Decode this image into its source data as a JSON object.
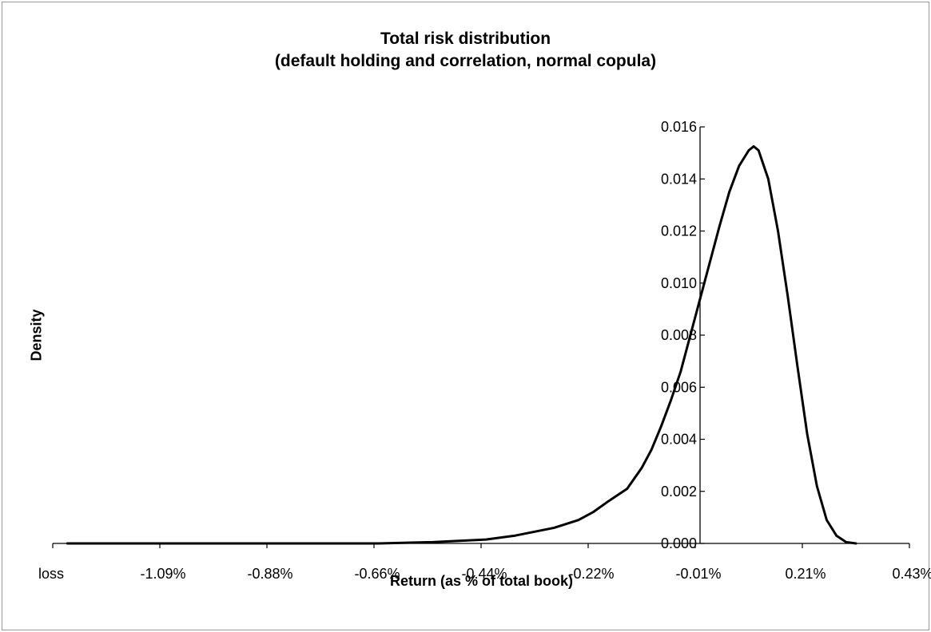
{
  "chart_data": {
    "type": "line",
    "title": "Total risk distribution",
    "subtitle": "(default holding and correlation, normal copula)",
    "xlabel": "Return (as % of total book)",
    "ylabel": "Density",
    "x_tick_labels": [
      "loss",
      "-1.09%",
      "-0.88%",
      "-0.66%",
      "-0.44%",
      "-0.22%",
      "-0.01%",
      "0.21%",
      "0.43%"
    ],
    "y_tick_labels": [
      "0.000",
      "0.002",
      "0.004",
      "0.006",
      "0.008",
      "0.010",
      "0.012",
      "0.014",
      "0.016"
    ],
    "ylim": [
      0,
      0.016
    ],
    "grid": false,
    "legend": "none",
    "series": [
      {
        "color": "#000000",
        "points": [
          {
            "x": -1.3,
            "y": 0.0
          },
          {
            "x": -0.88,
            "y": 0.0
          },
          {
            "x": -0.66,
            "y": 0.0
          },
          {
            "x": -0.55,
            "y": 5e-05
          },
          {
            "x": -0.44,
            "y": 0.00015
          },
          {
            "x": -0.38,
            "y": 0.0003
          },
          {
            "x": -0.3,
            "y": 0.0006
          },
          {
            "x": -0.25,
            "y": 0.0009
          },
          {
            "x": -0.22,
            "y": 0.0012
          },
          {
            "x": -0.19,
            "y": 0.0016
          },
          {
            "x": -0.15,
            "y": 0.0021
          },
          {
            "x": -0.12,
            "y": 0.0029
          },
          {
            "x": -0.1,
            "y": 0.0036
          },
          {
            "x": -0.08,
            "y": 0.0045
          },
          {
            "x": -0.06,
            "y": 0.0055
          },
          {
            "x": -0.04,
            "y": 0.0066
          },
          {
            "x": -0.02,
            "y": 0.008
          },
          {
            "x": 0.0,
            "y": 0.0094
          },
          {
            "x": 0.02,
            "y": 0.0108
          },
          {
            "x": 0.04,
            "y": 0.0122
          },
          {
            "x": 0.06,
            "y": 0.0135
          },
          {
            "x": 0.08,
            "y": 0.0145
          },
          {
            "x": 0.1,
            "y": 0.0151
          },
          {
            "x": 0.11,
            "y": 0.01525
          },
          {
            "x": 0.12,
            "y": 0.0151
          },
          {
            "x": 0.14,
            "y": 0.014
          },
          {
            "x": 0.16,
            "y": 0.012
          },
          {
            "x": 0.18,
            "y": 0.0095
          },
          {
            "x": 0.2,
            "y": 0.0068
          },
          {
            "x": 0.22,
            "y": 0.0042
          },
          {
            "x": 0.24,
            "y": 0.0022
          },
          {
            "x": 0.26,
            "y": 0.0009
          },
          {
            "x": 0.28,
            "y": 0.0003
          },
          {
            "x": 0.3,
            "y": 5e-05
          },
          {
            "x": 0.32,
            "y": 0.0
          }
        ]
      }
    ]
  }
}
